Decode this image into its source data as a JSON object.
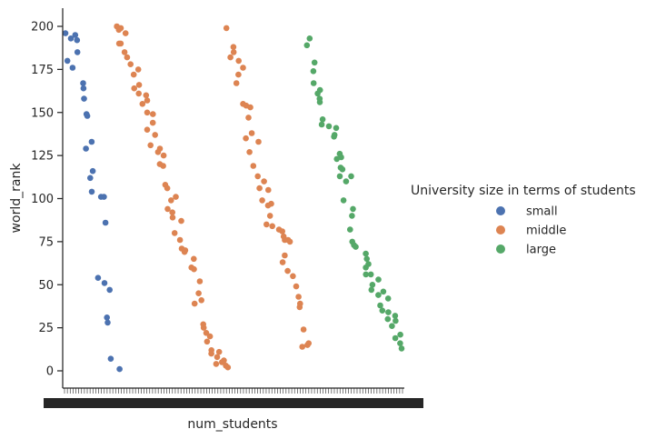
{
  "chart_data": {
    "type": "scatter",
    "xlabel": "num_students",
    "ylabel": "world_rank",
    "ylim": [
      -10,
      210
    ],
    "yticks": [
      0,
      25,
      50,
      75,
      100,
      125,
      150,
      175,
      200
    ],
    "xtick_labels_legible": {
      "first": "2",
      "last": "0"
    },
    "legend": {
      "title": "University size in terms of students",
      "placement": "right",
      "entries": [
        "small",
        "middle",
        "large"
      ]
    },
    "series": [
      {
        "name": "small",
        "color": "#4c72b0",
        "y": [
          180,
          196,
          193,
          185,
          195,
          192,
          176,
          164,
          167,
          149,
          148,
          158,
          133,
          129,
          116,
          112,
          104,
          101,
          101,
          86,
          54,
          51,
          47,
          31,
          28,
          7,
          1
        ]
      },
      {
        "name": "middle",
        "color": "#dd8452",
        "y": [
          199,
          200,
          198,
          196,
          190,
          190,
          185,
          182,
          178,
          175,
          172,
          166,
          164,
          161,
          160,
          157,
          155,
          150,
          149,
          144,
          140,
          137,
          131,
          129,
          127,
          125,
          120,
          119,
          108,
          106,
          101,
          99,
          94,
          92,
          89,
          87,
          80,
          76,
          71,
          70,
          69,
          65,
          60,
          59,
          52,
          45,
          41,
          39,
          27,
          25,
          22,
          20,
          17,
          12,
          11,
          10,
          8,
          6,
          5,
          4,
          3,
          2,
          199,
          188,
          185,
          182,
          180,
          176,
          172,
          167,
          155,
          154,
          153,
          147,
          138,
          135,
          133,
          127,
          119,
          113,
          110,
          106,
          105,
          99,
          97,
          96,
          90,
          85,
          84,
          82,
          81,
          78,
          76,
          76,
          75,
          67,
          63,
          58,
          55,
          49,
          43,
          39,
          37,
          24,
          16,
          15,
          14
        ]
      },
      {
        "name": "large",
        "color": "#55a868",
        "y": [
          193,
          189,
          179,
          174,
          167,
          163,
          161,
          158,
          156,
          146,
          143,
          142,
          141,
          137,
          136,
          126,
          124,
          123,
          118,
          117,
          113,
          113,
          110,
          99,
          94,
          90,
          82,
          75,
          73,
          72,
          68,
          65,
          62,
          60,
          56,
          56,
          53,
          50,
          47,
          46,
          44,
          42,
          38,
          35,
          34,
          32,
          30,
          29,
          26,
          21,
          19,
          16,
          13
        ]
      }
    ]
  }
}
